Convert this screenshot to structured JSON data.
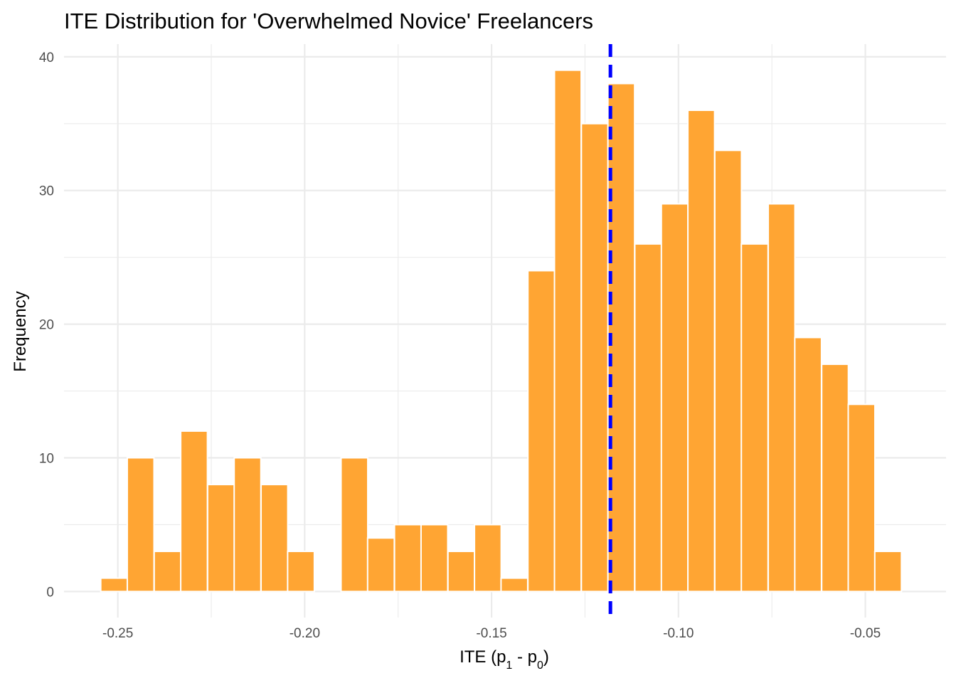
{
  "chart_data": {
    "type": "bar",
    "title": "ITE Distribution for 'Overwhelmed Novice' Freelancers",
    "xlabel": {
      "main": "ITE (p",
      "sub1": "1",
      "mid": " - p",
      "sub0": "0",
      "end": ")"
    },
    "ylabel": "Frequency",
    "xlim": [
      -0.2644,
      -0.0284
    ],
    "ylim": [
      -1.95,
      40.95
    ],
    "x_ticks": [
      -0.25,
      -0.2,
      -0.15,
      -0.1,
      -0.05
    ],
    "x_tick_labels": [
      "-0.25",
      "-0.20",
      "-0.15",
      "-0.10",
      "-0.05"
    ],
    "y_ticks": [
      0,
      10,
      20,
      30,
      40
    ],
    "y_tick_labels": [
      "0",
      "10",
      "20",
      "30",
      "40"
    ],
    "bin_width": 0.00714,
    "bins": [
      {
        "x": -0.251,
        "count": 1
      },
      {
        "x": -0.2439,
        "count": 10
      },
      {
        "x": -0.2367,
        "count": 3
      },
      {
        "x": -0.2296,
        "count": 12
      },
      {
        "x": -0.2224,
        "count": 8
      },
      {
        "x": -0.2153,
        "count": 10
      },
      {
        "x": -0.2081,
        "count": 8
      },
      {
        "x": -0.201,
        "count": 3
      },
      {
        "x": -0.1939,
        "count": 0
      },
      {
        "x": -0.1867,
        "count": 10
      },
      {
        "x": -0.1796,
        "count": 4
      },
      {
        "x": -0.1724,
        "count": 5
      },
      {
        "x": -0.1653,
        "count": 5
      },
      {
        "x": -0.1581,
        "count": 3
      },
      {
        "x": -0.151,
        "count": 5
      },
      {
        "x": -0.1439,
        "count": 1
      },
      {
        "x": -0.1367,
        "count": 24
      },
      {
        "x": -0.1296,
        "count": 39
      },
      {
        "x": -0.1224,
        "count": 35
      },
      {
        "x": -0.1153,
        "count": 38
      },
      {
        "x": -0.1081,
        "count": 26
      },
      {
        "x": -0.101,
        "count": 29
      },
      {
        "x": -0.0939,
        "count": 36
      },
      {
        "x": -0.0867,
        "count": 33
      },
      {
        "x": -0.0796,
        "count": 26
      },
      {
        "x": -0.0724,
        "count": 29
      },
      {
        "x": -0.0653,
        "count": 19
      },
      {
        "x": -0.0581,
        "count": 17
      },
      {
        "x": -0.051,
        "count": 14
      },
      {
        "x": -0.0439,
        "count": 3
      }
    ],
    "mean_line": -0.1182,
    "grid": true,
    "colors": {
      "bar_fill": "#FFA533",
      "bar_outline": "#ffffff",
      "mean_line": "#0000FF",
      "grid": "#ebebeb",
      "background": "#ffffff"
    }
  }
}
